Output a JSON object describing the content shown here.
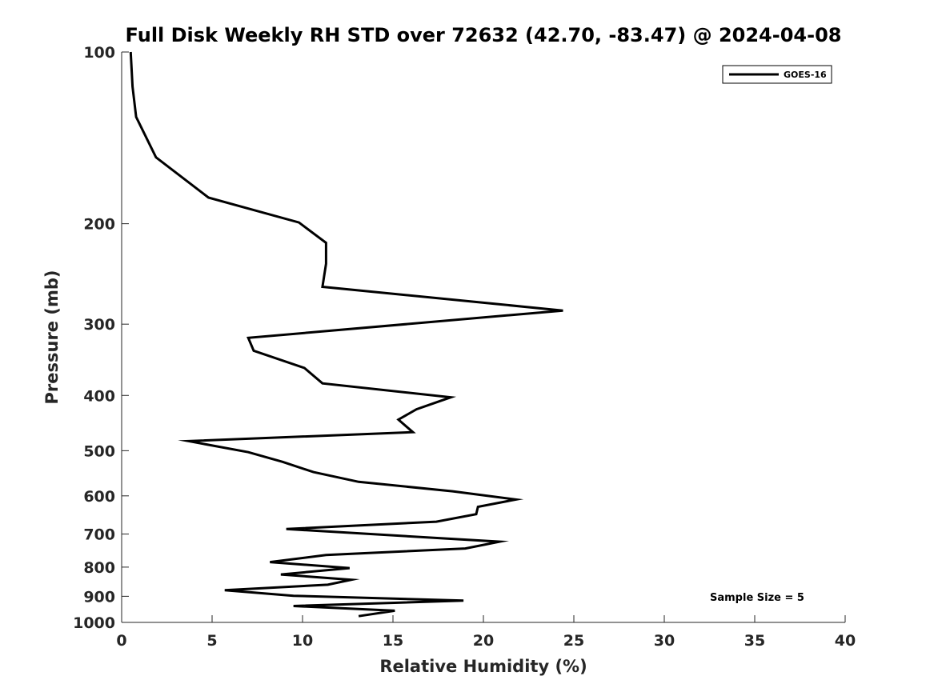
{
  "chart_data": {
    "type": "line",
    "title": "Full Disk Weekly RH STD over 72632 (42.70, -83.47) @ 2024-04-08",
    "xlabel": "Relative Humidity (%)",
    "ylabel": "Pressure (mb)",
    "xlim": [
      0,
      40
    ],
    "ylim": [
      100,
      1000
    ],
    "yscale": "log",
    "reverse_y": true,
    "x_ticks": [
      0,
      5,
      10,
      15,
      20,
      25,
      30,
      35,
      40
    ],
    "y_ticks": [
      100,
      200,
      300,
      400,
      500,
      600,
      700,
      800,
      900,
      1000
    ],
    "legend_position": "top-right",
    "annotation": "Sample Size = 5",
    "series": [
      {
        "name": "GOES-16",
        "color": "#000000",
        "points": [
          [
            0.5,
            100
          ],
          [
            0.6,
            115
          ],
          [
            0.8,
            130
          ],
          [
            1.9,
            153
          ],
          [
            4.8,
            180
          ],
          [
            9.8,
            199
          ],
          [
            11.3,
            216
          ],
          [
            11.3,
            235
          ],
          [
            11.1,
            258
          ],
          [
            24.4,
            284
          ],
          [
            7.0,
            317
          ],
          [
            7.3,
            334
          ],
          [
            10.1,
            358
          ],
          [
            11.1,
            381
          ],
          [
            18.2,
            403
          ],
          [
            16.3,
            423
          ],
          [
            15.3,
            441
          ],
          [
            16.1,
            464
          ],
          [
            3.7,
            481
          ],
          [
            7.0,
            503
          ],
          [
            8.9,
            523
          ],
          [
            10.6,
            545
          ],
          [
            13.1,
            567
          ],
          [
            18.3,
            589
          ],
          [
            21.8,
            609
          ],
          [
            19.7,
            627
          ],
          [
            19.6,
            646
          ],
          [
            17.4,
            666
          ],
          [
            9.1,
            686
          ],
          [
            20.9,
            722
          ],
          [
            19.0,
            742
          ],
          [
            11.3,
            762
          ],
          [
            8.2,
            784
          ],
          [
            12.6,
            803
          ],
          [
            8.8,
            824
          ],
          [
            12.7,
            842
          ],
          [
            11.4,
            859
          ],
          [
            5.7,
            878
          ],
          [
            9.5,
            898
          ],
          [
            18.9,
            916
          ],
          [
            9.5,
            936
          ],
          [
            15.1,
            954
          ],
          [
            13.1,
            975
          ]
        ]
      }
    ]
  }
}
